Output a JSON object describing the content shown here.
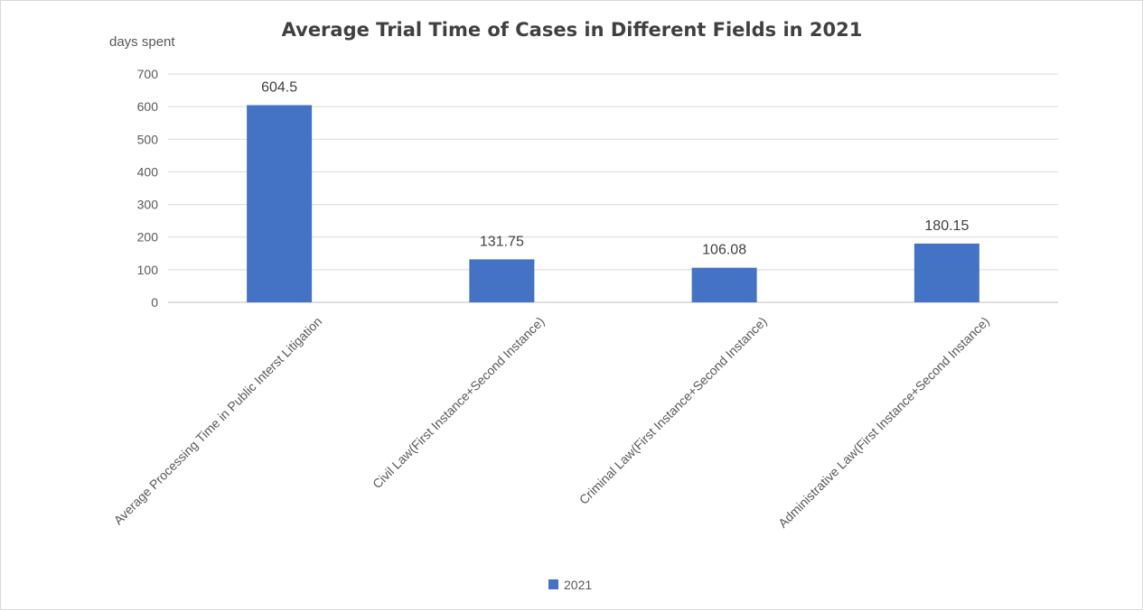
{
  "chart_data": {
    "type": "bar",
    "title": "Average Trial Time of Cases in Different Fields in 2021",
    "ylabel": "days spent",
    "xlabel": "",
    "categories": [
      "Average Processing Time in Public Interst Litigation",
      "Civil Law(First Instance+Second Instance)",
      "Criminal Law(First Instance+Second Instance)",
      "Administrative Law(First Instance+Second Instance)"
    ],
    "series": [
      {
        "name": "2021",
        "values": [
          604.5,
          131.75,
          106.08,
          180.15
        ],
        "color": "#4472c4"
      }
    ],
    "data_labels": [
      "604.5",
      "131.75",
      "106.08",
      "180.15"
    ],
    "yticks": [
      0,
      100,
      200,
      300,
      400,
      500,
      600,
      700
    ],
    "ylim": [
      0,
      700
    ],
    "grid": true,
    "legend": "bottom-center"
  }
}
